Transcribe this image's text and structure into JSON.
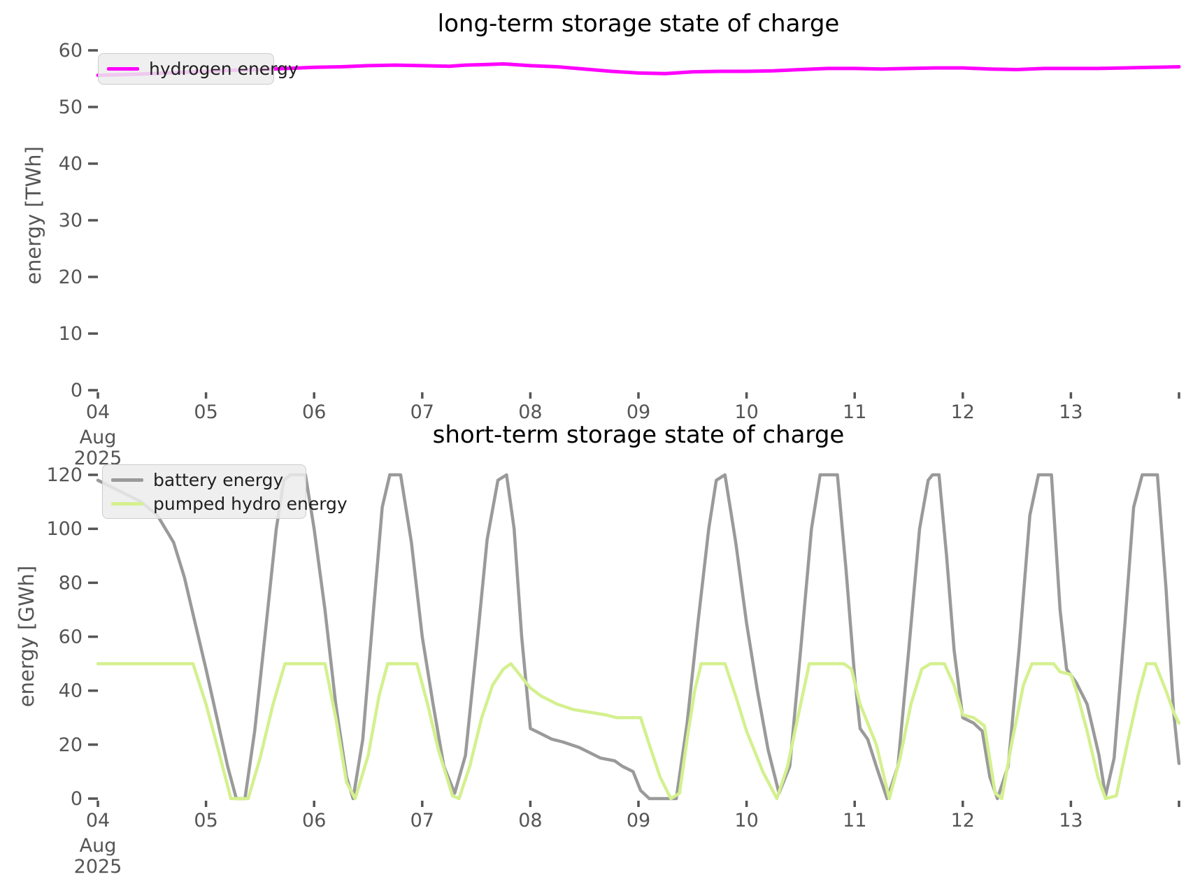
{
  "figure": {
    "background": "#ffffff",
    "tick_color": "#555555",
    "text_color": "#000000"
  },
  "chart_data": [
    {
      "type": "line",
      "title": "long-term storage state of charge",
      "xlabel": "",
      "ylabel": "energy [TWh]",
      "x_range": [
        4,
        14
      ],
      "ylim": [
        0,
        60
      ],
      "grid": false,
      "legend_position": "upper-left",
      "yticks": [
        {
          "v": 0,
          "label": "0"
        },
        {
          "v": 10,
          "label": "10"
        },
        {
          "v": 20,
          "label": "20"
        },
        {
          "v": 30,
          "label": "30"
        },
        {
          "v": 40,
          "label": "40"
        },
        {
          "v": 50,
          "label": "50"
        },
        {
          "v": 60,
          "label": "60"
        }
      ],
      "xticks": [
        {
          "v": 4,
          "label": "04",
          "sub1": "Aug",
          "sub2": "2025"
        },
        {
          "v": 5,
          "label": "05"
        },
        {
          "v": 6,
          "label": "06"
        },
        {
          "v": 7,
          "label": "07"
        },
        {
          "v": 8,
          "label": "08"
        },
        {
          "v": 9,
          "label": "09"
        },
        {
          "v": 10,
          "label": "10"
        },
        {
          "v": 11,
          "label": "11"
        },
        {
          "v": 12,
          "label": "12"
        },
        {
          "v": 13,
          "label": "13"
        },
        {
          "v": 14,
          "label": ""
        }
      ],
      "series": [
        {
          "name": "hydrogen energy",
          "color": "#FF00FF",
          "line_width": 5,
          "points": [
            [
              4.0,
              55.6
            ],
            [
              4.25,
              55.7
            ],
            [
              4.5,
              55.9
            ],
            [
              4.75,
              56.1
            ],
            [
              5.0,
              56.3
            ],
            [
              5.25,
              56.5
            ],
            [
              5.5,
              56.6
            ],
            [
              5.75,
              56.8
            ],
            [
              6.0,
              57.0
            ],
            [
              6.25,
              57.1
            ],
            [
              6.5,
              57.3
            ],
            [
              6.75,
              57.4
            ],
            [
              7.0,
              57.3
            ],
            [
              7.25,
              57.2
            ],
            [
              7.4,
              57.4
            ],
            [
              7.6,
              57.5
            ],
            [
              7.75,
              57.6
            ],
            [
              8.0,
              57.3
            ],
            [
              8.25,
              57.1
            ],
            [
              8.5,
              56.7
            ],
            [
              8.75,
              56.3
            ],
            [
              9.0,
              56.0
            ],
            [
              9.25,
              55.9
            ],
            [
              9.5,
              56.2
            ],
            [
              9.75,
              56.3
            ],
            [
              10.0,
              56.3
            ],
            [
              10.25,
              56.4
            ],
            [
              10.5,
              56.6
            ],
            [
              10.75,
              56.8
            ],
            [
              11.0,
              56.8
            ],
            [
              11.25,
              56.7
            ],
            [
              11.5,
              56.8
            ],
            [
              11.75,
              56.9
            ],
            [
              12.0,
              56.9
            ],
            [
              12.25,
              56.7
            ],
            [
              12.5,
              56.6
            ],
            [
              12.75,
              56.8
            ],
            [
              13.0,
              56.8
            ],
            [
              13.25,
              56.8
            ],
            [
              13.5,
              56.9
            ],
            [
              13.75,
              57.0
            ],
            [
              14.0,
              57.1
            ]
          ]
        }
      ]
    },
    {
      "type": "line",
      "title": "short-term storage state of charge",
      "xlabel": "",
      "ylabel": "energy [GWh]",
      "x_range": [
        4,
        14
      ],
      "ylim": [
        0,
        120
      ],
      "grid": false,
      "legend_position": "upper-left",
      "yticks": [
        {
          "v": 0,
          "label": "0"
        },
        {
          "v": 20,
          "label": "20"
        },
        {
          "v": 40,
          "label": "40"
        },
        {
          "v": 60,
          "label": "60"
        },
        {
          "v": 80,
          "label": "80"
        },
        {
          "v": 100,
          "label": "100"
        },
        {
          "v": 120,
          "label": "120"
        }
      ],
      "xticks": [
        {
          "v": 4,
          "label": "04",
          "sub1": "Aug",
          "sub2": "2025"
        },
        {
          "v": 5,
          "label": "05"
        },
        {
          "v": 6,
          "label": "06"
        },
        {
          "v": 7,
          "label": "07"
        },
        {
          "v": 8,
          "label": "08"
        },
        {
          "v": 9,
          "label": "09"
        },
        {
          "v": 10,
          "label": "10"
        },
        {
          "v": 11,
          "label": "11"
        },
        {
          "v": 12,
          "label": "12"
        },
        {
          "v": 13,
          "label": "13"
        },
        {
          "v": 14,
          "label": ""
        }
      ],
      "series": [
        {
          "name": "battery energy",
          "color": "#9A9A9A",
          "line_width": 4.5,
          "points": [
            [
              4.0,
              118
            ],
            [
              4.1,
              116
            ],
            [
              4.25,
              113
            ],
            [
              4.4,
              110
            ],
            [
              4.55,
              105
            ],
            [
              4.7,
              95
            ],
            [
              4.8,
              82
            ],
            [
              4.9,
              65
            ],
            [
              5.0,
              48
            ],
            [
              5.1,
              30
            ],
            [
              5.2,
              12
            ],
            [
              5.28,
              0
            ],
            [
              5.36,
              0
            ],
            [
              5.45,
              25
            ],
            [
              5.55,
              62
            ],
            [
              5.65,
              100
            ],
            [
              5.72,
              118
            ],
            [
              5.78,
              120
            ],
            [
              5.92,
              120
            ],
            [
              6.0,
              100
            ],
            [
              6.1,
              70
            ],
            [
              6.2,
              35
            ],
            [
              6.3,
              8
            ],
            [
              6.36,
              0
            ],
            [
              6.45,
              22
            ],
            [
              6.55,
              70
            ],
            [
              6.63,
              108
            ],
            [
              6.7,
              120
            ],
            [
              6.8,
              120
            ],
            [
              6.9,
              95
            ],
            [
              7.0,
              60
            ],
            [
              7.1,
              35
            ],
            [
              7.2,
              12
            ],
            [
              7.3,
              2
            ],
            [
              7.4,
              16
            ],
            [
              7.5,
              55
            ],
            [
              7.6,
              96
            ],
            [
              7.7,
              118
            ],
            [
              7.78,
              120
            ],
            [
              7.85,
              100
            ],
            [
              7.92,
              60
            ],
            [
              8.0,
              26
            ],
            [
              8.1,
              24
            ],
            [
              8.2,
              22
            ],
            [
              8.3,
              21
            ],
            [
              8.45,
              19
            ],
            [
              8.55,
              17
            ],
            [
              8.65,
              15
            ],
            [
              8.78,
              14
            ],
            [
              8.85,
              12
            ],
            [
              8.95,
              10
            ],
            [
              9.02,
              3
            ],
            [
              9.1,
              0
            ],
            [
              9.35,
              0
            ],
            [
              9.45,
              28
            ],
            [
              9.55,
              65
            ],
            [
              9.65,
              100
            ],
            [
              9.72,
              118
            ],
            [
              9.8,
              120
            ],
            [
              9.9,
              95
            ],
            [
              10.0,
              65
            ],
            [
              10.1,
              40
            ],
            [
              10.2,
              18
            ],
            [
              10.3,
              2
            ],
            [
              10.4,
              12
            ],
            [
              10.5,
              55
            ],
            [
              10.6,
              100
            ],
            [
              10.68,
              120
            ],
            [
              10.84,
              120
            ],
            [
              10.92,
              85
            ],
            [
              11.0,
              45
            ],
            [
              11.05,
              26
            ],
            [
              11.12,
              22
            ],
            [
              11.2,
              12
            ],
            [
              11.3,
              0
            ],
            [
              11.4,
              12
            ],
            [
              11.5,
              55
            ],
            [
              11.6,
              100
            ],
            [
              11.68,
              118
            ],
            [
              11.72,
              120
            ],
            [
              11.78,
              120
            ],
            [
              11.85,
              90
            ],
            [
              11.92,
              55
            ],
            [
              12.0,
              30
            ],
            [
              12.1,
              28
            ],
            [
              12.18,
              25
            ],
            [
              12.25,
              8
            ],
            [
              12.32,
              0
            ],
            [
              12.42,
              12
            ],
            [
              12.52,
              55
            ],
            [
              12.62,
              105
            ],
            [
              12.7,
              120
            ],
            [
              12.82,
              120
            ],
            [
              12.9,
              70
            ],
            [
              12.96,
              48
            ],
            [
              13.05,
              43
            ],
            [
              13.15,
              35
            ],
            [
              13.26,
              16
            ],
            [
              13.32,
              1
            ],
            [
              13.4,
              15
            ],
            [
              13.5,
              65
            ],
            [
              13.58,
              108
            ],
            [
              13.66,
              120
            ],
            [
              13.8,
              120
            ],
            [
              13.88,
              78
            ],
            [
              13.95,
              32
            ],
            [
              14.0,
              13
            ]
          ]
        },
        {
          "name": "pumped hydro energy",
          "color": "#D4F08F",
          "line_width": 4.5,
          "points": [
            [
              4.0,
              50
            ],
            [
              4.88,
              50
            ],
            [
              5.0,
              35
            ],
            [
              5.1,
              20
            ],
            [
              5.23,
              0
            ],
            [
              5.39,
              0
            ],
            [
              5.5,
              15
            ],
            [
              5.62,
              35
            ],
            [
              5.73,
              50
            ],
            [
              6.1,
              50
            ],
            [
              6.2,
              30
            ],
            [
              6.3,
              6
            ],
            [
              6.38,
              0
            ],
            [
              6.5,
              16
            ],
            [
              6.6,
              38
            ],
            [
              6.68,
              50
            ],
            [
              6.95,
              50
            ],
            [
              7.05,
              35
            ],
            [
              7.15,
              18
            ],
            [
              7.28,
              1
            ],
            [
              7.34,
              0
            ],
            [
              7.44,
              12
            ],
            [
              7.55,
              30
            ],
            [
              7.65,
              42
            ],
            [
              7.75,
              48
            ],
            [
              7.82,
              50
            ],
            [
              7.9,
              46
            ],
            [
              8.0,
              41
            ],
            [
              8.1,
              38
            ],
            [
              8.25,
              35
            ],
            [
              8.4,
              33
            ],
            [
              8.55,
              32
            ],
            [
              8.7,
              31
            ],
            [
              8.8,
              30
            ],
            [
              9.02,
              30
            ],
            [
              9.1,
              20
            ],
            [
              9.2,
              8
            ],
            [
              9.3,
              0
            ],
            [
              9.38,
              2
            ],
            [
              9.45,
              22
            ],
            [
              9.52,
              40
            ],
            [
              9.58,
              50
            ],
            [
              9.8,
              50
            ],
            [
              9.9,
              38
            ],
            [
              10.0,
              25
            ],
            [
              10.15,
              10
            ],
            [
              10.28,
              0
            ],
            [
              10.38,
              12
            ],
            [
              10.5,
              35
            ],
            [
              10.58,
              50
            ],
            [
              10.9,
              50
            ],
            [
              10.97,
              48
            ],
            [
              11.05,
              35
            ],
            [
              11.12,
              28
            ],
            [
              11.2,
              20
            ],
            [
              11.32,
              0
            ],
            [
              11.42,
              15
            ],
            [
              11.52,
              35
            ],
            [
              11.62,
              48
            ],
            [
              11.7,
              50
            ],
            [
              11.83,
              50
            ],
            [
              11.92,
              42
            ],
            [
              12.0,
              31
            ],
            [
              12.1,
              30
            ],
            [
              12.2,
              27
            ],
            [
              12.3,
              2
            ],
            [
              12.36,
              0
            ],
            [
              12.45,
              20
            ],
            [
              12.56,
              42
            ],
            [
              12.64,
              50
            ],
            [
              12.84,
              50
            ],
            [
              12.9,
              47
            ],
            [
              13.0,
              46
            ],
            [
              13.05,
              40
            ],
            [
              13.15,
              25
            ],
            [
              13.25,
              8
            ],
            [
              13.32,
              0
            ],
            [
              13.42,
              1
            ],
            [
              13.52,
              20
            ],
            [
              13.62,
              38
            ],
            [
              13.7,
              50
            ],
            [
              13.78,
              50
            ],
            [
              13.88,
              40
            ],
            [
              13.95,
              32
            ],
            [
              14.0,
              28
            ]
          ]
        }
      ]
    }
  ]
}
